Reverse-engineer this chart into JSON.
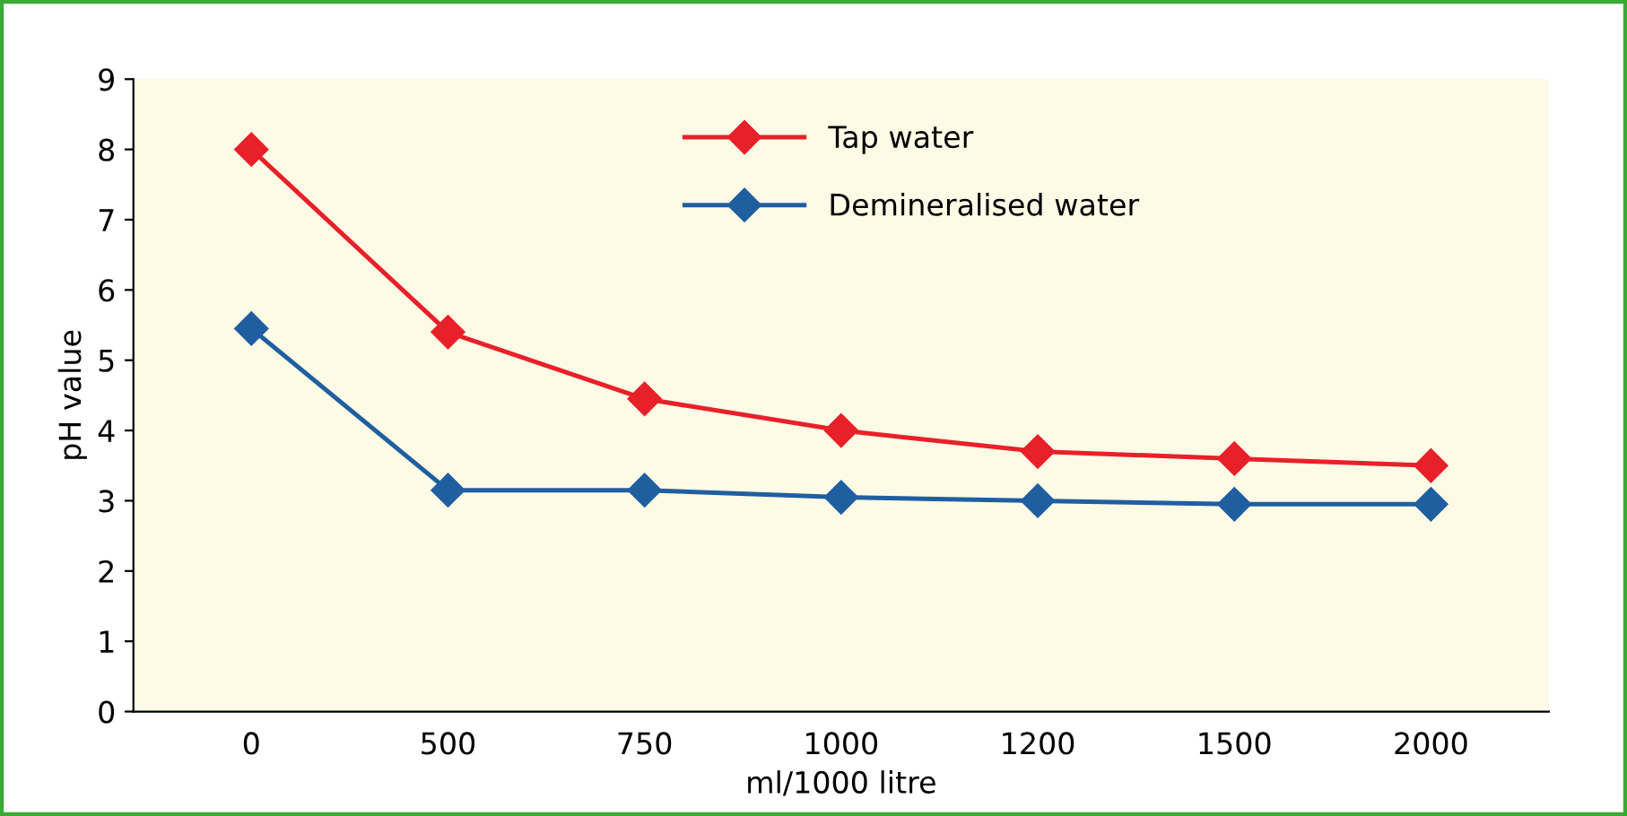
{
  "chart_data": {
    "type": "line",
    "xlabel": "ml/1000 litre",
    "ylabel": "pH value",
    "categories": [
      "0",
      "500",
      "750",
      "1000",
      "1200",
      "1500",
      "2000"
    ],
    "series": [
      {
        "name": "Tap water",
        "color": "#e8202a",
        "values": [
          8.0,
          5.4,
          4.45,
          4.0,
          3.7,
          3.6,
          3.5
        ]
      },
      {
        "name": "Demineralised water",
        "color": "#1f5fa0",
        "values": [
          5.45,
          3.15,
          3.15,
          3.05,
          3.0,
          2.95,
          2.95
        ]
      }
    ],
    "ylim": [
      0,
      9
    ],
    "yticks": [
      0,
      1,
      2,
      3,
      4,
      5,
      6,
      7,
      8,
      9
    ],
    "marker": "diamond",
    "line_style": "solid",
    "grid": false,
    "legend": "top"
  }
}
